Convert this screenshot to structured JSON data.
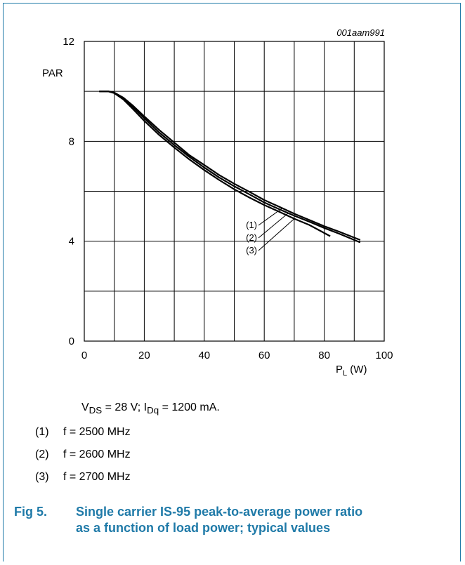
{
  "figure_id": "001aam991",
  "conditions": {
    "vds_label": "V",
    "vds_sub": "DS",
    "vds_rest": " = 28 V; I",
    "idq_sub": "Dq",
    "idq_rest": " = 1200 mA."
  },
  "legend": [
    {
      "num": "(1)",
      "text": "f = 2500 MHz"
    },
    {
      "num": "(2)",
      "text": "f = 2600 MHz"
    },
    {
      "num": "(3)",
      "text": "f = 2700 MHz"
    }
  ],
  "caption": {
    "number": "Fig 5.",
    "text": "Single carrier IS-95 peak-to-average power ratio as a function of load power; typical values"
  },
  "chart_data": {
    "type": "line",
    "title": "",
    "ylabel": "PAR",
    "xlabel_main": "P",
    "xlabel_sub": "L",
    "xlabel_unit": " (W)",
    "xlim": [
      0,
      100
    ],
    "ylim": [
      0,
      12
    ],
    "x_ticks": [
      0,
      20,
      40,
      60,
      80,
      100
    ],
    "y_ticks": [
      0,
      4,
      8,
      12
    ],
    "grid": true,
    "series": [
      {
        "name": "(1)",
        "x": [
          5,
          8,
          10,
          13,
          16,
          20,
          25,
          30,
          35,
          40,
          45,
          50,
          55,
          60,
          65,
          70,
          75,
          80,
          85,
          92
        ],
        "y": [
          10.0,
          10.0,
          9.95,
          9.75,
          9.45,
          9.0,
          8.45,
          7.95,
          7.45,
          7.05,
          6.65,
          6.3,
          5.98,
          5.65,
          5.38,
          5.1,
          4.85,
          4.6,
          4.38,
          4.05
        ]
      },
      {
        "name": "(2)",
        "x": [
          5,
          8,
          10,
          13,
          16,
          20,
          25,
          30,
          35,
          40,
          45,
          50,
          55,
          60,
          65,
          70,
          75,
          80,
          85,
          92
        ],
        "y": [
          10.0,
          10.0,
          9.95,
          9.72,
          9.4,
          8.92,
          8.35,
          7.85,
          7.38,
          6.95,
          6.55,
          6.2,
          5.88,
          5.55,
          5.28,
          5.02,
          4.78,
          4.53,
          4.3,
          3.95
        ]
      },
      {
        "name": "(3)",
        "x": [
          5,
          8,
          10,
          13,
          16,
          20,
          25,
          30,
          35,
          40,
          45,
          50,
          55,
          60,
          65,
          70,
          75,
          82
        ],
        "y": [
          10.0,
          10.0,
          9.93,
          9.68,
          9.32,
          8.82,
          8.25,
          7.75,
          7.28,
          6.85,
          6.45,
          6.08,
          5.75,
          5.45,
          5.18,
          4.9,
          4.65,
          4.2
        ]
      }
    ]
  }
}
